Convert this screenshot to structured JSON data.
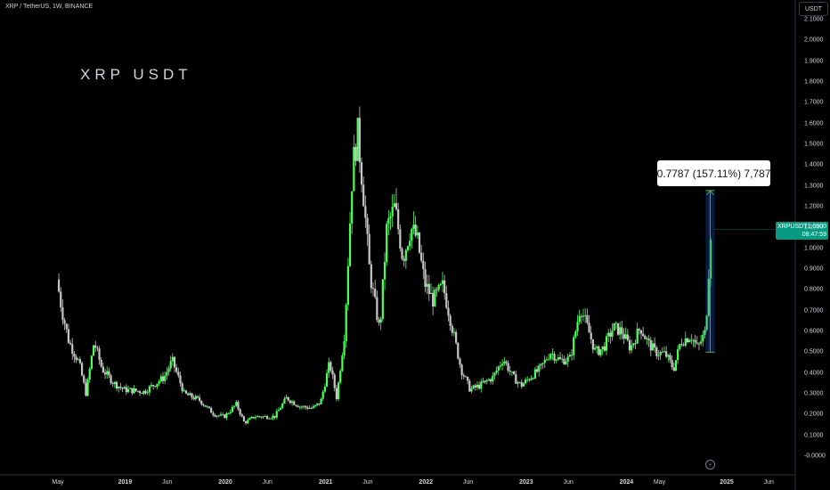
{
  "header": {
    "symbol_line": "XRP / TetherUS, 1W, BINANCE",
    "watermark": "XRP USDT",
    "currency": "USDT"
  },
  "price_tag": {
    "ticker": "XRPUSDT",
    "price": "1.0900",
    "countdown": "08:47:59",
    "color": "#089981"
  },
  "measure_tool": {
    "label": "0.7787 (157.11%) 7,787",
    "color": "#4caf50"
  },
  "colors": {
    "up": "#4eff5b",
    "down": "#c7c7c7",
    "background": "#000000"
  },
  "chart_data": {
    "type": "candlestick",
    "interval": "1W",
    "yaxis": {
      "ticks": [
        "2.1000",
        "2.0000",
        "1.9000",
        "1.8000",
        "1.7000",
        "1.6000",
        "1.5000",
        "1.4000",
        "1.3000",
        "1.2000",
        "1.1000",
        "1.0000",
        "0.9000",
        "0.8000",
        "0.7000",
        "0.6000",
        "0.5000",
        "0.4000",
        "0.3000",
        "0.2000",
        "0.1000",
        "-0.0000"
      ],
      "ylim": [
        -0.02,
        2.12
      ]
    },
    "xaxis": {
      "ticks": [
        {
          "label": "May",
          "year": false,
          "date": 2018.33
        },
        {
          "label": "2019",
          "year": true,
          "date": 2019.0
        },
        {
          "label": "Jun",
          "year": false,
          "date": 2019.42
        },
        {
          "label": "2020",
          "year": true,
          "date": 2020.0
        },
        {
          "label": "Jun",
          "year": false,
          "date": 2020.42
        },
        {
          "label": "2021",
          "year": true,
          "date": 2021.0
        },
        {
          "label": "Jun",
          "year": false,
          "date": 2021.42
        },
        {
          "label": "2022",
          "year": true,
          "date": 2022.0
        },
        {
          "label": "Jun",
          "year": false,
          "date": 2022.42
        },
        {
          "label": "2023",
          "year": true,
          "date": 2023.0
        },
        {
          "label": "Jun",
          "year": false,
          "date": 2023.42
        },
        {
          "label": "2024",
          "year": true,
          "date": 2024.0
        },
        {
          "label": "May",
          "year": false,
          "date": 2024.33
        },
        {
          "label": "2025",
          "year": true,
          "date": 2025.0
        },
        {
          "label": "Jun",
          "year": false,
          "date": 2025.42
        }
      ]
    },
    "price_path": [
      [
        2018.33,
        0.85
      ],
      [
        2018.38,
        0.7
      ],
      [
        2018.45,
        0.55
      ],
      [
        2018.55,
        0.45
      ],
      [
        2018.62,
        0.3
      ],
      [
        2018.7,
        0.55
      ],
      [
        2018.78,
        0.42
      ],
      [
        2018.9,
        0.35
      ],
      [
        2019.0,
        0.32
      ],
      [
        2019.2,
        0.31
      ],
      [
        2019.4,
        0.38
      ],
      [
        2019.48,
        0.46
      ],
      [
        2019.6,
        0.3
      ],
      [
        2019.75,
        0.27
      ],
      [
        2019.9,
        0.2
      ],
      [
        2020.0,
        0.19
      ],
      [
        2020.12,
        0.25
      ],
      [
        2020.2,
        0.16
      ],
      [
        2020.3,
        0.19
      ],
      [
        2020.5,
        0.19
      ],
      [
        2020.62,
        0.28
      ],
      [
        2020.75,
        0.24
      ],
      [
        2020.88,
        0.23
      ],
      [
        2020.96,
        0.26
      ],
      [
        2021.05,
        0.45
      ],
      [
        2021.12,
        0.28
      ],
      [
        2021.2,
        0.6
      ],
      [
        2021.28,
        1.4
      ],
      [
        2021.33,
        1.55
      ],
      [
        2021.38,
        1.3
      ],
      [
        2021.45,
        0.88
      ],
      [
        2021.55,
        0.6
      ],
      [
        2021.62,
        1.1
      ],
      [
        2021.7,
        1.2
      ],
      [
        2021.78,
        0.95
      ],
      [
        2021.86,
        1.1
      ],
      [
        2021.92,
        1.05
      ],
      [
        2022.0,
        0.83
      ],
      [
        2022.08,
        0.75
      ],
      [
        2022.18,
        0.82
      ],
      [
        2022.28,
        0.6
      ],
      [
        2022.36,
        0.42
      ],
      [
        2022.45,
        0.32
      ],
      [
        2022.55,
        0.34
      ],
      [
        2022.68,
        0.38
      ],
      [
        2022.78,
        0.47
      ],
      [
        2022.88,
        0.38
      ],
      [
        2022.96,
        0.34
      ],
      [
        2023.05,
        0.38
      ],
      [
        2023.15,
        0.42
      ],
      [
        2023.25,
        0.5
      ],
      [
        2023.35,
        0.46
      ],
      [
        2023.45,
        0.47
      ],
      [
        2023.55,
        0.72
      ],
      [
        2023.62,
        0.62
      ],
      [
        2023.7,
        0.5
      ],
      [
        2023.78,
        0.52
      ],
      [
        2023.88,
        0.62
      ],
      [
        2023.96,
        0.6
      ],
      [
        2024.05,
        0.52
      ],
      [
        2024.15,
        0.62
      ],
      [
        2024.22,
        0.55
      ],
      [
        2024.3,
        0.5
      ],
      [
        2024.4,
        0.49
      ],
      [
        2024.48,
        0.42
      ],
      [
        2024.55,
        0.55
      ],
      [
        2024.65,
        0.58
      ],
      [
        2024.72,
        0.52
      ],
      [
        2024.8,
        0.6
      ],
      [
        2024.85,
        1.09
      ]
    ],
    "measure": {
      "from_date": 2024.79,
      "to_date": 2024.88,
      "from_price": 0.5,
      "to_price": 1.278,
      "change": 0.7787,
      "change_pct": 157.11
    }
  }
}
